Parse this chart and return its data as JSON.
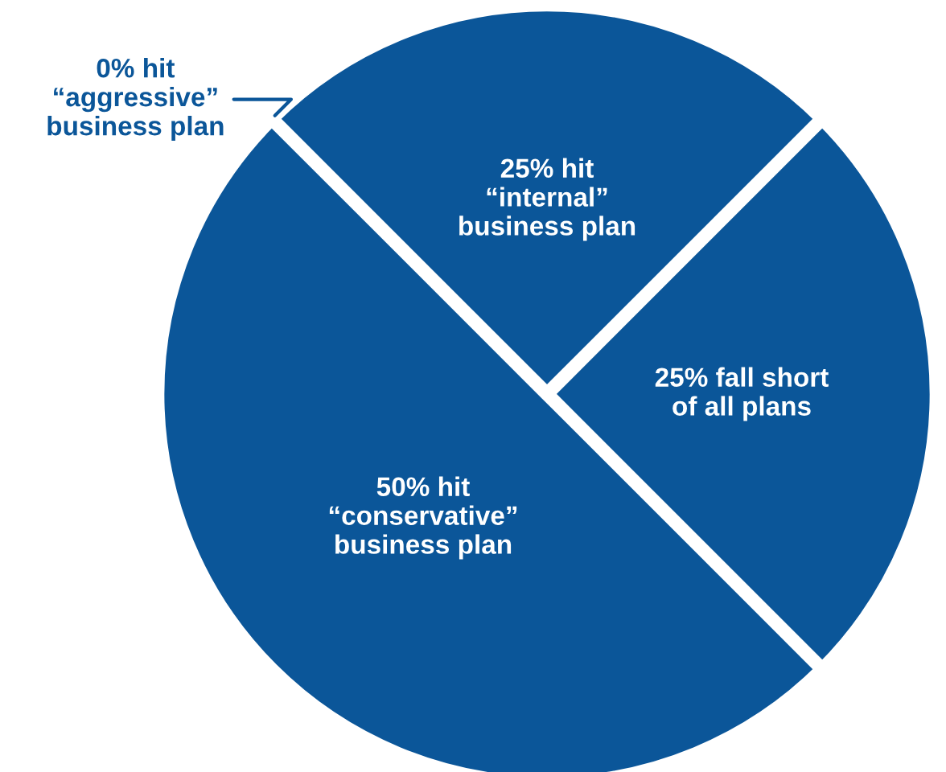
{
  "chart_data": {
    "type": "pie",
    "categories": [
      "0% hit\n“aggressive”\nbusiness plan",
      "25% hit\n“internal”\nbusiness plan",
      "25% fall short\nof all plans",
      "50% hit\n“conservative”\nbusiness plan"
    ],
    "values": [
      0,
      25,
      25,
      50
    ],
    "colors": [
      "#0b5699",
      "#0b5699",
      "#0b5699",
      "#0b5699"
    ]
  }
}
